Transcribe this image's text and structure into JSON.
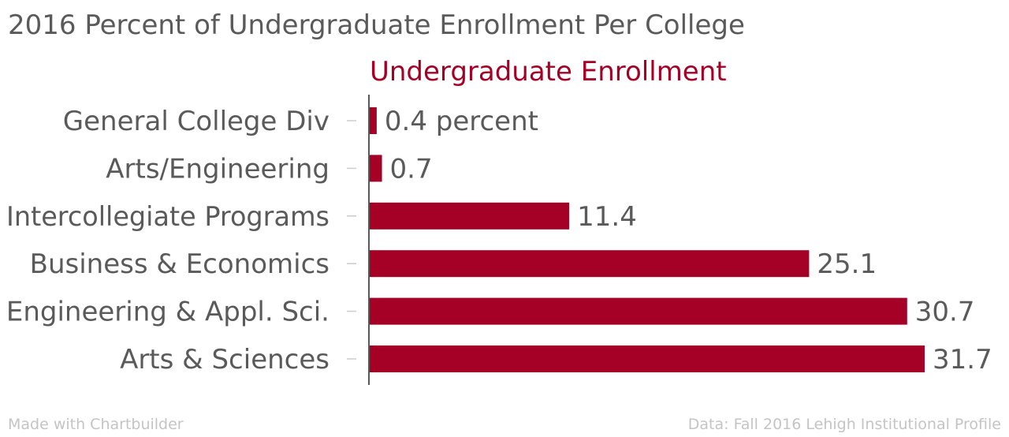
{
  "chart_data": {
    "type": "bar",
    "orientation": "horizontal",
    "title": "2016 Percent of Undergraduate Enrollment Per College",
    "legend": "Undergraduate Enrollment",
    "categories": [
      "General College Div",
      "Arts/Engineering",
      "Intercollegiate Programs",
      "Business & Economics",
      "Engineering & Appl. Sci.",
      "Arts & Sciences"
    ],
    "series": [
      {
        "name": "Undergraduate Enrollment",
        "values": [
          0.4,
          0.7,
          11.4,
          25.1,
          30.7,
          31.7
        ]
      }
    ],
    "value_labels": [
      "0.4 percent",
      "0.7",
      "11.4",
      "25.1",
      "30.7",
      "31.7"
    ],
    "xlim": [
      0,
      31.7
    ],
    "grid": false
  },
  "colors": {
    "bar": "#a50026",
    "legend": "#a50026"
  },
  "footer": {
    "credit": "Made with Chartbuilder",
    "source": "Data: Fall 2016 Lehigh Institutional Profile"
  }
}
